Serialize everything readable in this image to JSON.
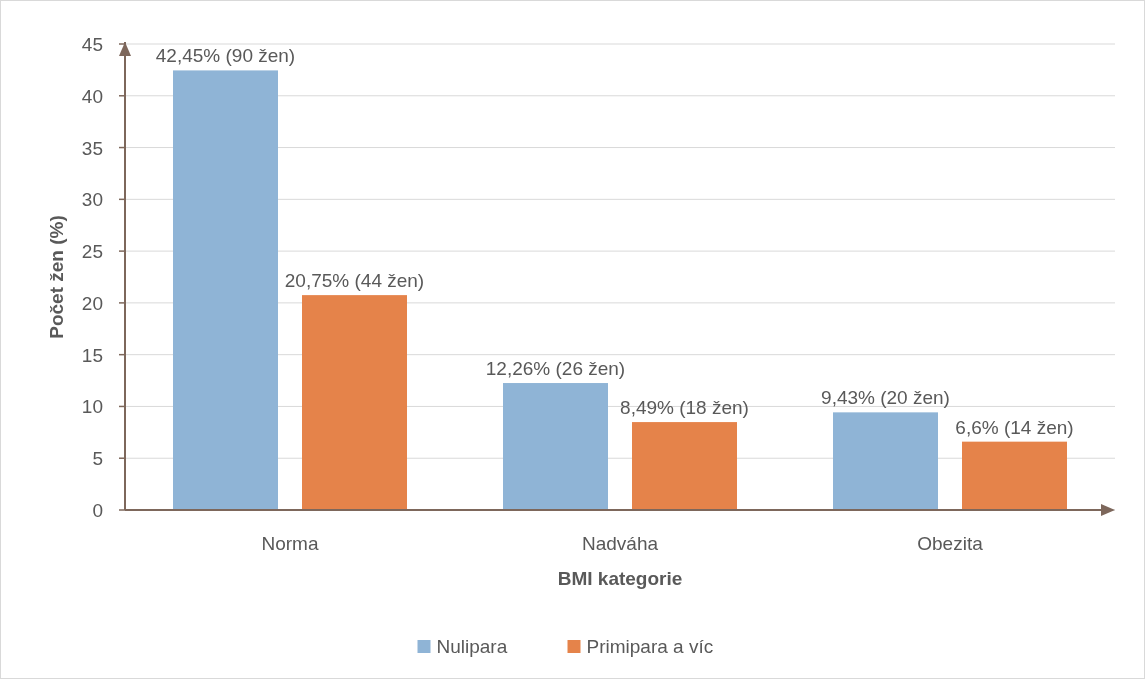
{
  "chart_data": {
    "type": "bar",
    "xlabel": "BMI kategorie",
    "ylabel": "Počet žen (%)",
    "categories": [
      "Norma",
      "Nadváha",
      "Obezita"
    ],
    "series": [
      {
        "name": "Nulipara",
        "color": "#8fb4d6",
        "values": [
          42.45,
          12.26,
          9.43
        ],
        "value_labels": [
          "42,45% (90 žen)",
          "12,26% (26 žen)",
          "9,43% (20 žen)"
        ]
      },
      {
        "name": "Primipara a víc",
        "color": "#e5834a",
        "values": [
          20.75,
          8.49,
          6.6
        ],
        "value_labels": [
          "20,75% (44 žen)",
          "8,49% (18 žen)",
          "6,6% (14 žen)"
        ]
      }
    ],
    "ylim": [
      0,
      45
    ],
    "yticks": [
      0,
      5,
      10,
      15,
      20,
      25,
      30,
      35,
      40,
      45
    ],
    "grid": "y",
    "legend": "bottom"
  }
}
